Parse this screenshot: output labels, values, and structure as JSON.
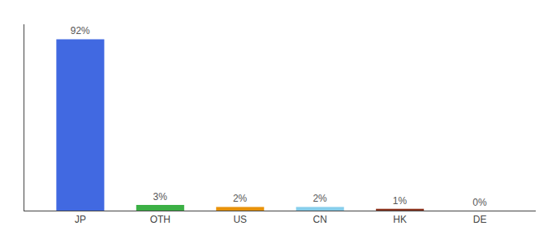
{
  "chart_data": {
    "type": "bar",
    "categories": [
      "JP",
      "OTH",
      "US",
      "CN",
      "HK",
      "DE"
    ],
    "values": [
      92,
      3,
      2,
      2,
      1,
      0
    ],
    "value_labels": [
      "92%",
      "3%",
      "2%",
      "2%",
      "1%",
      "0%"
    ],
    "data_labels": true,
    "colors": [
      "#4169e1",
      "#3cb045",
      "#e8920a",
      "#87ceeb",
      "#8b3520",
      "#cccccc"
    ],
    "ylim": [
      0,
      100
    ],
    "grid": false,
    "tick_labels": "x"
  }
}
